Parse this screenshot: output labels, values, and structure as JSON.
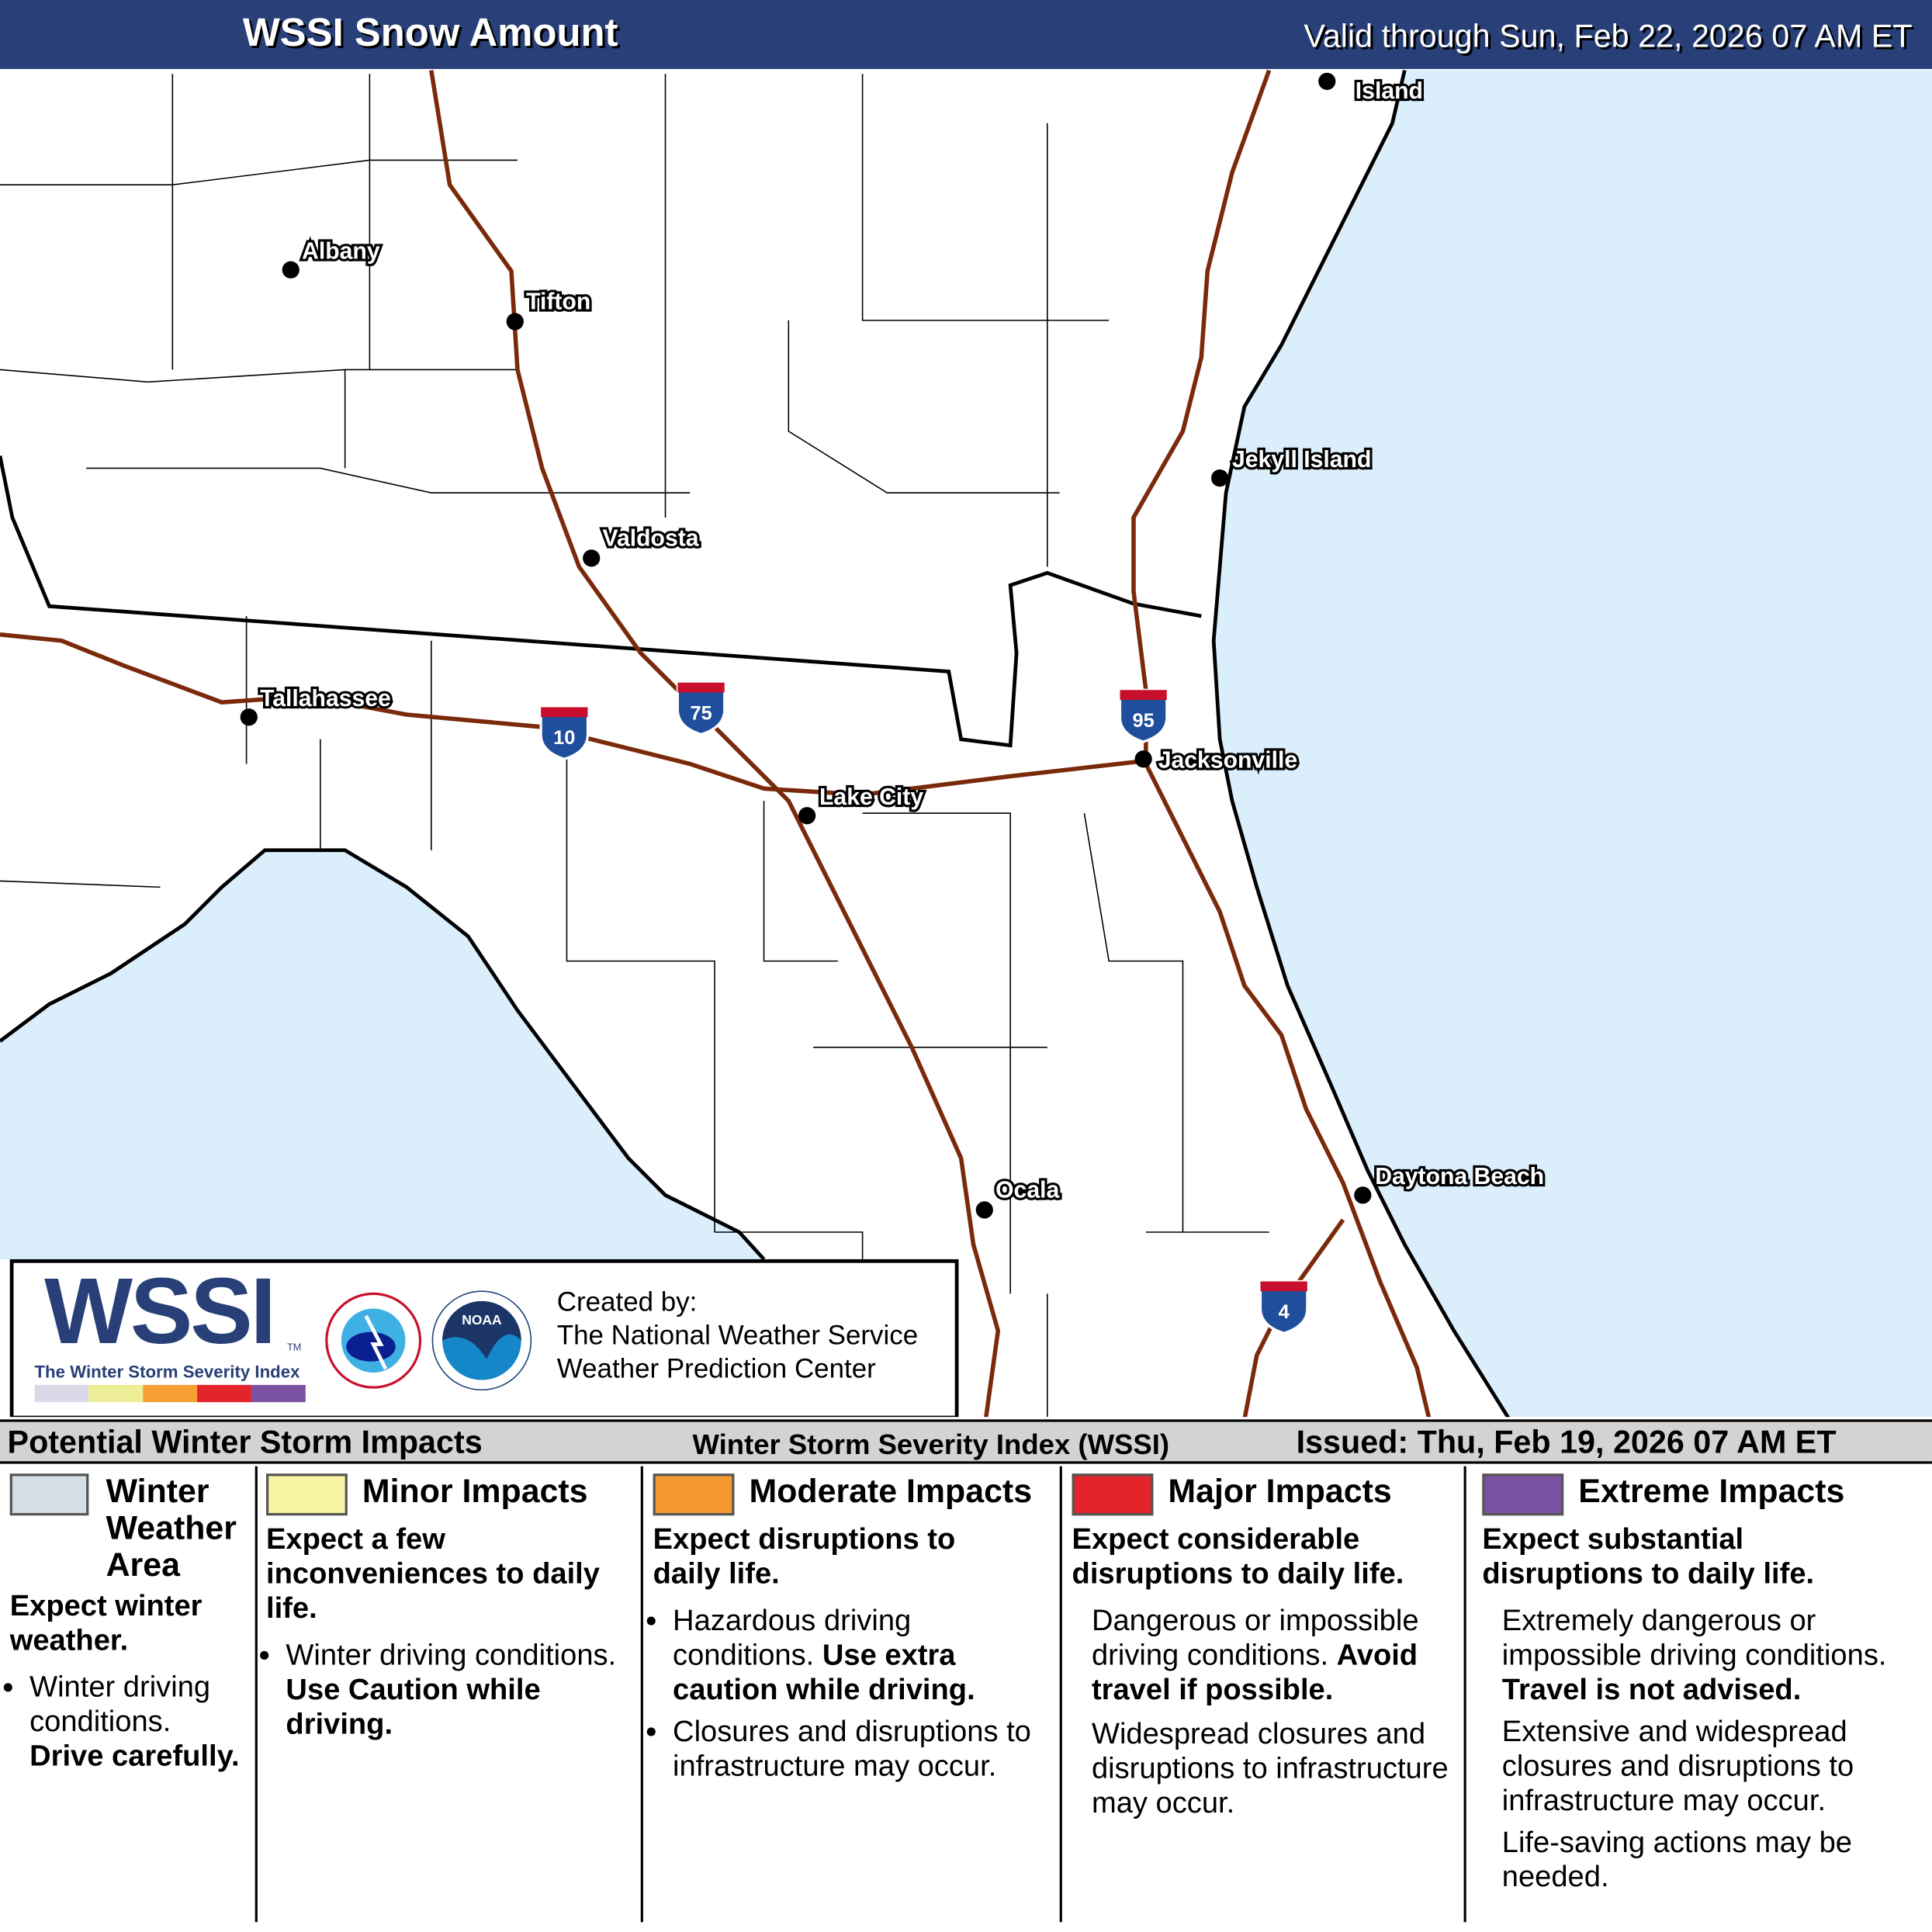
{
  "header": {
    "title": "WSSI Snow Amount",
    "valid": "Valid through Sun, Feb 22, 2026 07 AM ET"
  },
  "map": {
    "colors": {
      "water": "#dbeefc",
      "land": "#ffffff",
      "interstate": "#7a2a0a",
      "state_line": "#000000"
    },
    "cities": [
      {
        "name": "Albany"
      },
      {
        "name": "Tifton"
      },
      {
        "name": "Valdosta"
      },
      {
        "name": "Tallahassee"
      },
      {
        "name": "Lake City"
      },
      {
        "name": "Jacksonville"
      },
      {
        "name": "Jekyll Island"
      },
      {
        "name": "Ocala"
      },
      {
        "name": "Daytona Beach"
      },
      {
        "name": "Island"
      }
    ],
    "interstates": [
      "10",
      "75",
      "95",
      "4"
    ]
  },
  "logo": {
    "wssi": "WSSI",
    "tm": "TM",
    "subtitle": "The Winter Storm Severity Index",
    "scale_colors": [
      "#d9d9e8",
      "#eeee99",
      "#f7a035",
      "#e3242b",
      "#7b52a3"
    ],
    "created_by": "Created by:",
    "org1": "The National Weather Service",
    "org2": "Weather Prediction Center",
    "nws_seal_text": "NATIONAL WEATHER SERVICE",
    "noaa_text": "NOAA"
  },
  "legend": {
    "title": "Potential Winter Storm Impacts",
    "index_name": "Winter Storm Severity Index (WSSI)",
    "issued": "Issued: Thu, Feb 19, 2026 07 AM ET",
    "categories": [
      {
        "title": "Winter Weather Area",
        "color": "#d3dee6",
        "summary": "Expect winter weather.",
        "b1": "Winter driving conditions.",
        "b1b": "Drive carefully."
      },
      {
        "title": "Minor Impacts",
        "color": "#f8f4a4",
        "summary": "Expect a few inconveniences to daily life.",
        "b1": "Winter driving conditions.",
        "b1b": "Use Caution while driving."
      },
      {
        "title": "Moderate Impacts",
        "color": "#f59a32",
        "summary": "Expect disruptions to daily life.",
        "b1": "Hazardous driving conditions.",
        "b1b": "Use extra caution while driving.",
        "b2": "Closures and disruptions to infrastructure may occur."
      },
      {
        "title": "Major Impacts",
        "color": "#e3242b",
        "summary": "Expect considerable disruptions to daily life.",
        "b1": "Dangerous or impossible driving conditions.",
        "b1b": "Avoid travel if possible.",
        "b2": "Widespread closures and disruptions to infrastructure may occur."
      },
      {
        "title": "Extreme Impacts",
        "color": "#7b52a3",
        "summary": "Expect substantial disruptions to daily life.",
        "b1": "Extremely dangerous or impossible driving conditions.",
        "b1b": "Travel is not advised.",
        "b2": "Extensive and widespread closures and disruptions to infrastructure may occur.",
        "b3": "Life-saving actions may be needed."
      }
    ]
  }
}
